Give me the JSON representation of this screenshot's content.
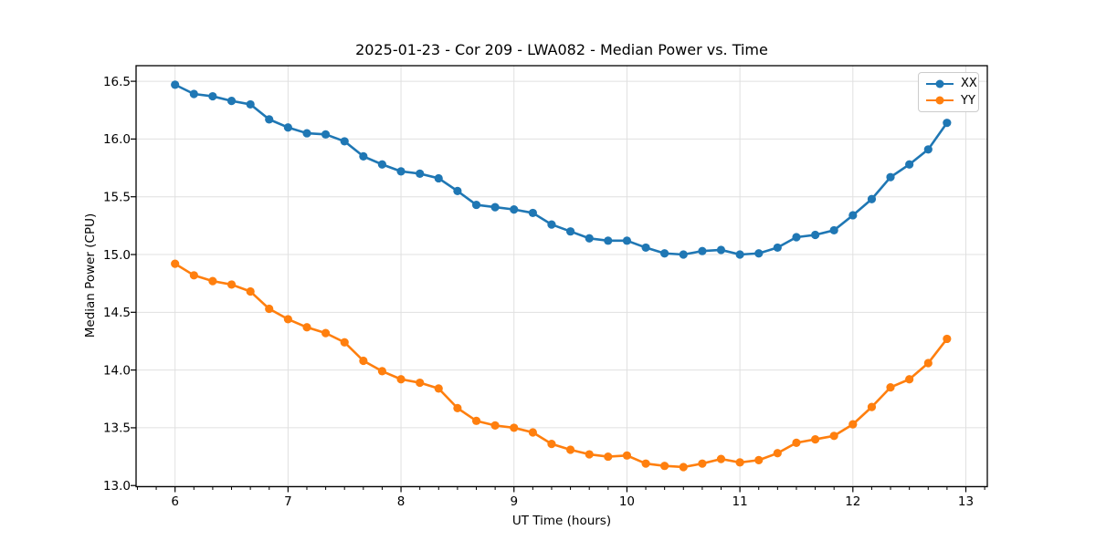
{
  "chart_data": {
    "type": "line",
    "title": "2025-01-23 - Cor 209 - LWA082 - Median Power vs. Time",
    "xlabel": "UT Time (hours)",
    "ylabel": "Median Power (CPU)",
    "x": [
      6.0,
      6.167,
      6.333,
      6.5,
      6.667,
      6.833,
      7.0,
      7.167,
      7.333,
      7.5,
      7.667,
      7.833,
      8.0,
      8.167,
      8.333,
      8.5,
      8.667,
      8.833,
      9.0,
      9.167,
      9.333,
      9.5,
      9.667,
      9.833,
      10.0,
      10.167,
      10.333,
      10.5,
      10.667,
      10.833,
      11.0,
      11.167,
      11.333,
      11.5,
      11.667,
      11.833,
      12.0,
      12.167,
      12.333,
      12.5,
      12.667,
      12.833
    ],
    "series": [
      {
        "name": "XX",
        "color": "#1f77b4",
        "values": [
          16.47,
          16.39,
          16.37,
          16.33,
          16.3,
          16.17,
          16.1,
          16.05,
          16.04,
          15.98,
          15.85,
          15.78,
          15.72,
          15.7,
          15.66,
          15.55,
          15.43,
          15.41,
          15.39,
          15.36,
          15.26,
          15.2,
          15.14,
          15.12,
          15.12,
          15.06,
          15.01,
          15.0,
          15.03,
          15.04,
          15.0,
          15.01,
          15.06,
          15.15,
          15.17,
          15.21,
          15.34,
          15.48,
          15.67,
          15.78,
          15.91,
          16.14
        ]
      },
      {
        "name": "YY",
        "color": "#ff7f0e",
        "values": [
          14.92,
          14.82,
          14.77,
          14.74,
          14.68,
          14.53,
          14.44,
          14.37,
          14.32,
          14.24,
          14.08,
          13.99,
          13.92,
          13.89,
          13.84,
          13.67,
          13.56,
          13.52,
          13.5,
          13.46,
          13.36,
          13.31,
          13.27,
          13.25,
          13.26,
          13.19,
          13.17,
          13.16,
          13.19,
          13.23,
          13.2,
          13.22,
          13.28,
          13.37,
          13.4,
          13.43,
          13.53,
          13.68,
          13.85,
          13.92,
          14.06,
          14.27
        ]
      }
    ],
    "xlim": [
      5.655,
      13.19
    ],
    "ylim": [
      12.99,
      16.635
    ],
    "xticks": [
      6,
      7,
      8,
      9,
      10,
      11,
      12,
      13
    ],
    "yticks": [
      13.0,
      13.5,
      14.0,
      14.5,
      15.0,
      15.5,
      16.0,
      16.5
    ],
    "x_minor_tick_step": 0.1666667,
    "grid": true,
    "legend_position": "upper right",
    "background": "#ffffff",
    "grid_color": "#e0e0e0",
    "spine_color": "#000000",
    "marker": "o"
  }
}
